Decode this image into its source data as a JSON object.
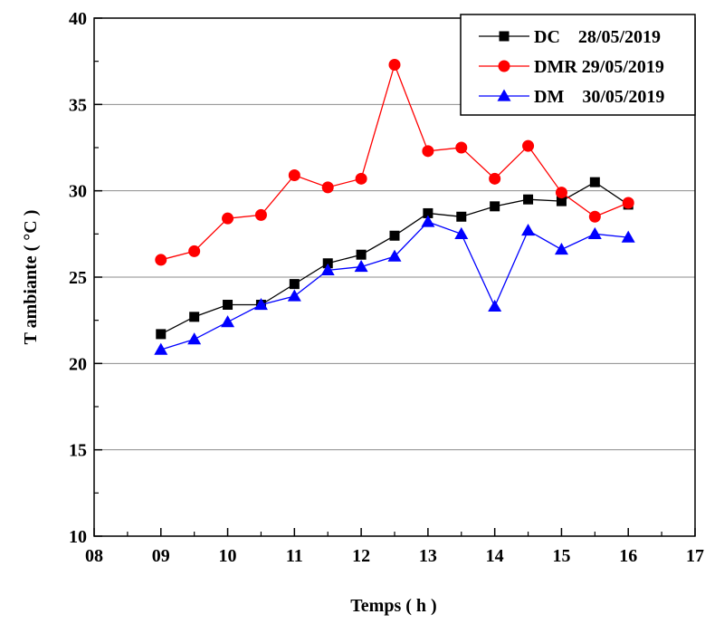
{
  "chart_data": {
    "type": "line",
    "xlabel": "Temps ( h )",
    "ylabel": "T ambiante  ( °C )",
    "xlim": [
      8,
      17
    ],
    "ylim": [
      10,
      40
    ],
    "x_ticks": [
      8,
      9,
      10,
      11,
      12,
      13,
      14,
      15,
      16,
      17
    ],
    "x_tick_labels": [
      "08",
      "09",
      "10",
      "11",
      "12",
      "13",
      "14",
      "15",
      "16",
      "17"
    ],
    "y_ticks": [
      10,
      15,
      20,
      25,
      30,
      35,
      40
    ],
    "y_tick_labels": [
      "10",
      "15",
      "20",
      "25",
      "30",
      "35",
      "40"
    ],
    "grid": "horizontal",
    "legend_position": "top-right",
    "x": [
      9,
      9.5,
      10,
      10.5,
      11,
      11.5,
      12,
      12.5,
      13,
      13.5,
      14,
      14.5,
      15,
      15.5,
      16
    ],
    "series": [
      {
        "name": "DC    28/05/2019",
        "color": "#000000",
        "marker": "square",
        "values": [
          21.7,
          22.7,
          23.4,
          23.4,
          24.6,
          25.8,
          26.3,
          27.4,
          28.7,
          28.5,
          29.1,
          29.5,
          29.4,
          30.5,
          29.2
        ]
      },
      {
        "name": "DMR 29/05/2019",
        "color": "#ff0000",
        "marker": "circle",
        "values": [
          26.0,
          26.5,
          28.4,
          28.6,
          30.9,
          30.2,
          30.7,
          37.3,
          32.3,
          32.5,
          30.7,
          32.6,
          29.9,
          28.5,
          29.3
        ]
      },
      {
        "name": "DM    30/05/2019",
        "color": "#0000ff",
        "marker": "triangle",
        "values": [
          20.8,
          21.4,
          22.4,
          23.4,
          23.9,
          25.4,
          25.6,
          26.2,
          28.2,
          27.5,
          23.3,
          27.7,
          26.6,
          27.5,
          27.3
        ]
      }
    ]
  }
}
